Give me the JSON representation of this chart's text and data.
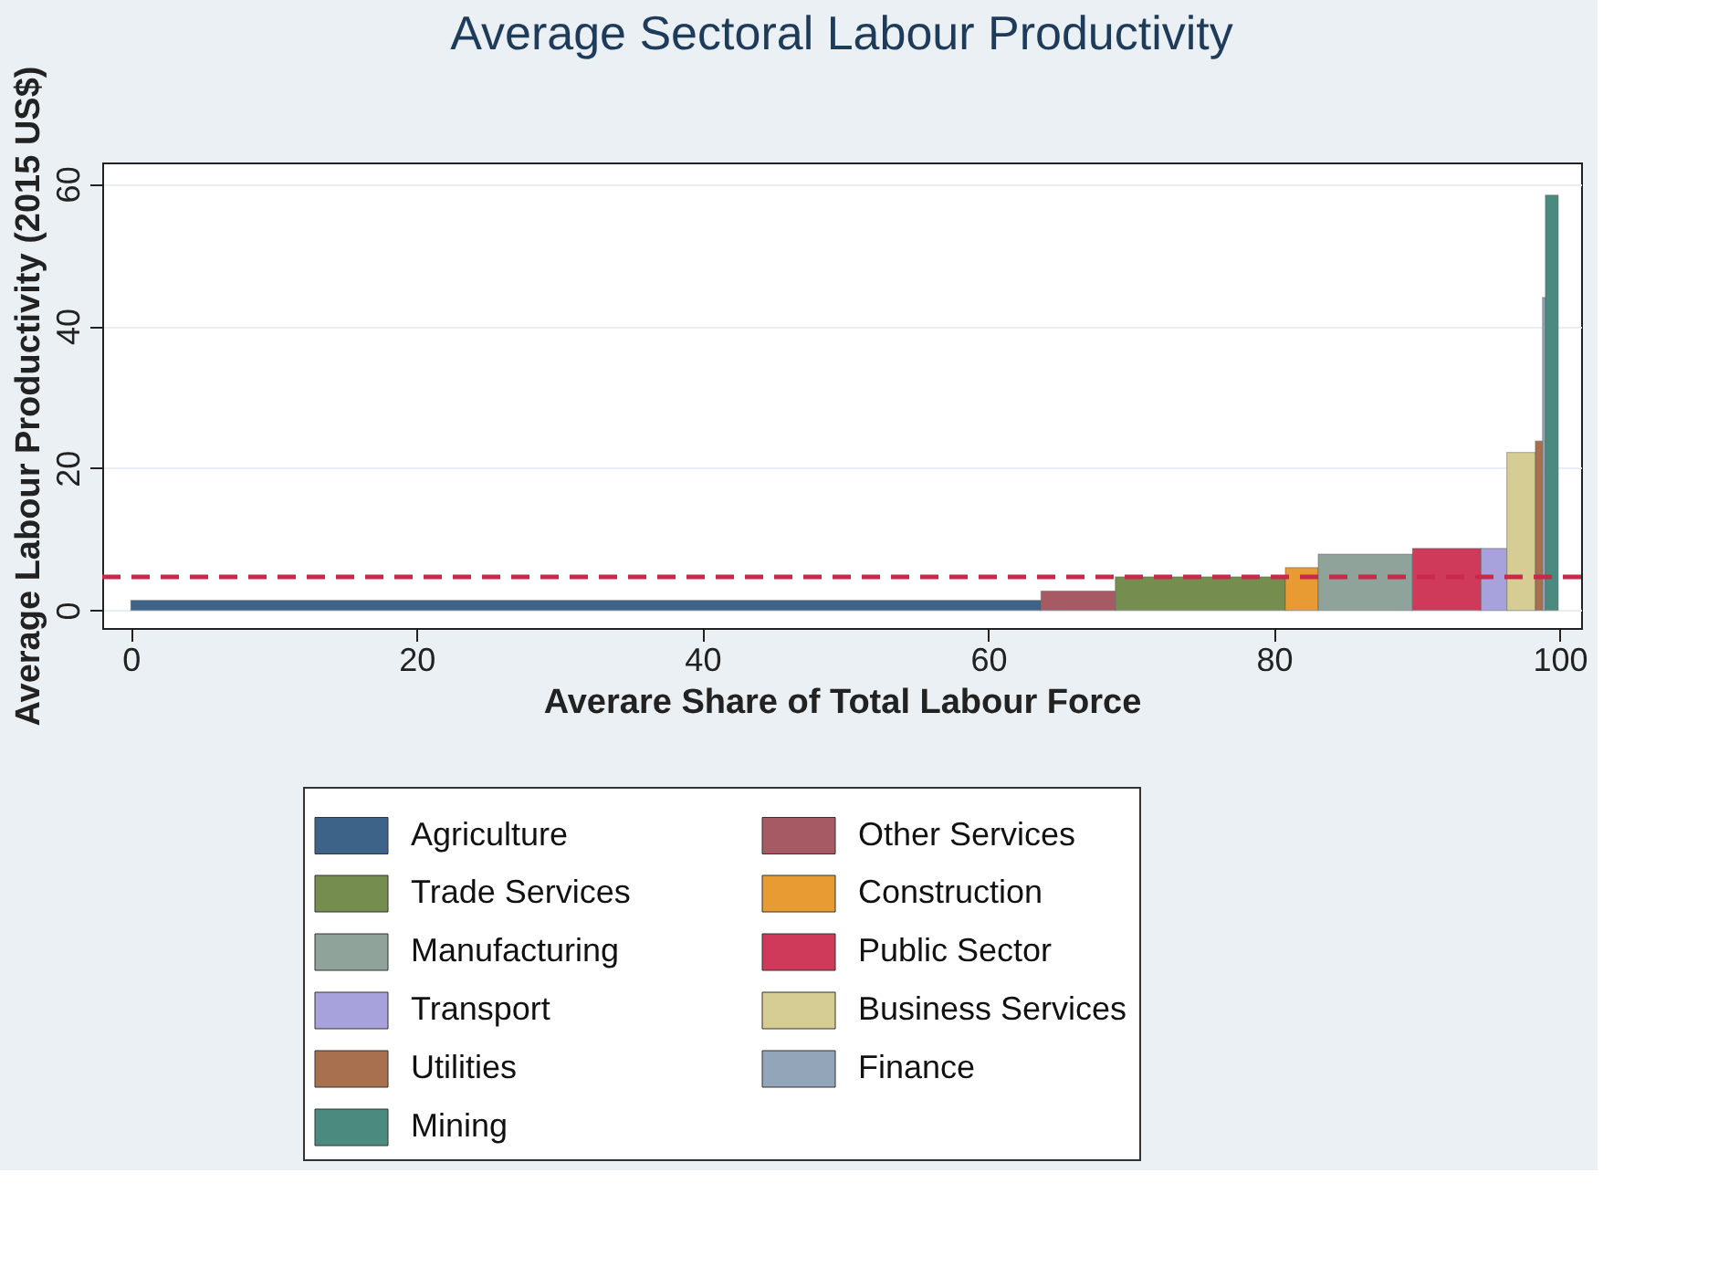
{
  "chart_data": {
    "type": "histogram",
    "title": "Average Sectoral Labour Productivity",
    "xlabel": "Averare Share of Total Labour Force",
    "ylabel": "Average Labour Productivity (2015 US$)",
    "bins": [
      0,
      63.7,
      68.9,
      80.8,
      83.1,
      89.7,
      94.5,
      96.3,
      98.3,
      98.8,
      99.0,
      99.9
    ],
    "series": [
      {
        "name": "Agriculture",
        "color": "#3e6389",
        "values": [
          1.4,
          null,
          null,
          null,
          null,
          null,
          null,
          null,
          null,
          null,
          null
        ]
      },
      {
        "name": "Other Services",
        "color": "#a65a63",
        "values": [
          null,
          2.7,
          null,
          null,
          null,
          null,
          null,
          null,
          null,
          null,
          null
        ]
      },
      {
        "name": "Trade Services",
        "color": "#758d4f",
        "values": [
          null,
          null,
          4.7,
          null,
          null,
          null,
          null,
          null,
          null,
          null,
          null
        ]
      },
      {
        "name": "Construction",
        "color": "#e89a33",
        "values": [
          null,
          null,
          null,
          6.0,
          null,
          null,
          null,
          null,
          null,
          null,
          null
        ]
      },
      {
        "name": "Manufacturing",
        "color": "#8fa39a",
        "values": [
          null,
          null,
          null,
          null,
          7.9,
          null,
          null,
          null,
          null,
          null,
          null
        ]
      },
      {
        "name": "Public Sector",
        "color": "#cf3a5b",
        "values": [
          null,
          null,
          null,
          null,
          null,
          8.7,
          null,
          null,
          null,
          null,
          null
        ]
      },
      {
        "name": "Transport",
        "color": "#a8a2dc",
        "values": [
          null,
          null,
          null,
          null,
          null,
          null,
          8.7,
          null,
          null,
          null,
          null
        ]
      },
      {
        "name": "Business Services",
        "color": "#d6cd95",
        "values": [
          null,
          null,
          null,
          null,
          null,
          null,
          null,
          22.2,
          null,
          null,
          null
        ]
      },
      {
        "name": "Utilities",
        "color": "#a8704e",
        "values": [
          null,
          null,
          null,
          null,
          null,
          null,
          null,
          null,
          23.8,
          null,
          null
        ]
      },
      {
        "name": "Finance",
        "color": "#93a6b9",
        "values": [
          null,
          null,
          null,
          null,
          null,
          null,
          null,
          null,
          null,
          44.0,
          null
        ]
      },
      {
        "name": "Mining",
        "color": "#4b8a7f",
        "values": [
          null,
          null,
          null,
          null,
          null,
          null,
          null,
          null,
          null,
          null,
          58.4
        ]
      }
    ],
    "xlim": [
      -2,
      101.5
    ],
    "ylim": [
      -2.5,
      63
    ],
    "xticks": [
      0,
      20,
      40,
      60,
      80,
      100
    ],
    "yticks": [
      0,
      20,
      40,
      60
    ],
    "ref_lines": [
      {
        "axis": "y",
        "value": 4.7,
        "color": "#c8284a",
        "line_style": "dashed"
      }
    ],
    "grid": "y",
    "legend": "bottom"
  }
}
